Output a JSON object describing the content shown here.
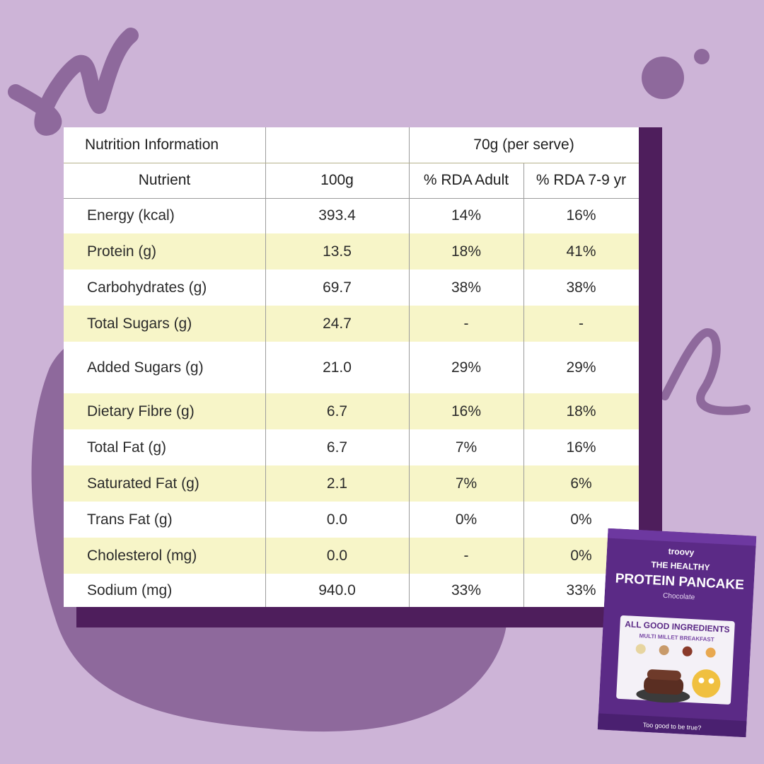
{
  "table": {
    "title": "Nutrition Information",
    "serve_header": "70g (per serve)",
    "columns": [
      "Nutrient",
      "100g",
      "% RDA Adult",
      "% RDA 7-9 yr"
    ],
    "rows": [
      {
        "nutrient": "Energy (kcal)",
        "per100g": "393.4",
        "rda_adult": "14%",
        "rda_child": "16%"
      },
      {
        "nutrient": "Protein (g)",
        "per100g": "13.5",
        "rda_adult": "18%",
        "rda_child": "41%"
      },
      {
        "nutrient": "Carbohydrates (g)",
        "per100g": "69.7",
        "rda_adult": "38%",
        "rda_child": "38%"
      },
      {
        "nutrient": "Total Sugars (g)",
        "per100g": "24.7",
        "rda_adult": "-",
        "rda_child": "-"
      },
      {
        "nutrient": "Added Sugars (g)",
        "per100g": "21.0",
        "rda_adult": "29%",
        "rda_child": "29%"
      },
      {
        "nutrient": "Dietary Fibre (g)",
        "per100g": "6.7",
        "rda_adult": "16%",
        "rda_child": "18%"
      },
      {
        "nutrient": "Total Fat (g)",
        "per100g": "6.7",
        "rda_adult": "7%",
        "rda_child": "16%"
      },
      {
        "nutrient": "Saturated Fat (g)",
        "per100g": "2.1",
        "rda_adult": "7%",
        "rda_child": "6%"
      },
      {
        "nutrient": "Trans Fat (g)",
        "per100g": "0.0",
        "rda_adult": "0%",
        "rda_child": "0%"
      },
      {
        "nutrient": "Cholesterol (mg)",
        "per100g": "0.0",
        "rda_adult": "-",
        "rda_child": "0%"
      },
      {
        "nutrient": "Sodium (mg)",
        "per100g": "940.0",
        "rda_adult": "33%",
        "rda_child": "33%"
      }
    ]
  },
  "package": {
    "brand": "troovy",
    "line1": "THE HEALTHY",
    "line2": "PROTEIN PANCAKE",
    "flavor": "Chocolate",
    "banner": "ALL GOOD INGREDIENTS",
    "sub_banner": "MULTI MILLET BREAKFAST",
    "tagline": "Too good to be true?"
  },
  "colors": {
    "background": "#cdb4d7",
    "blob": "#8e699c",
    "panel": "#4e1e5c",
    "row_highlight": "#f7f5c8"
  }
}
